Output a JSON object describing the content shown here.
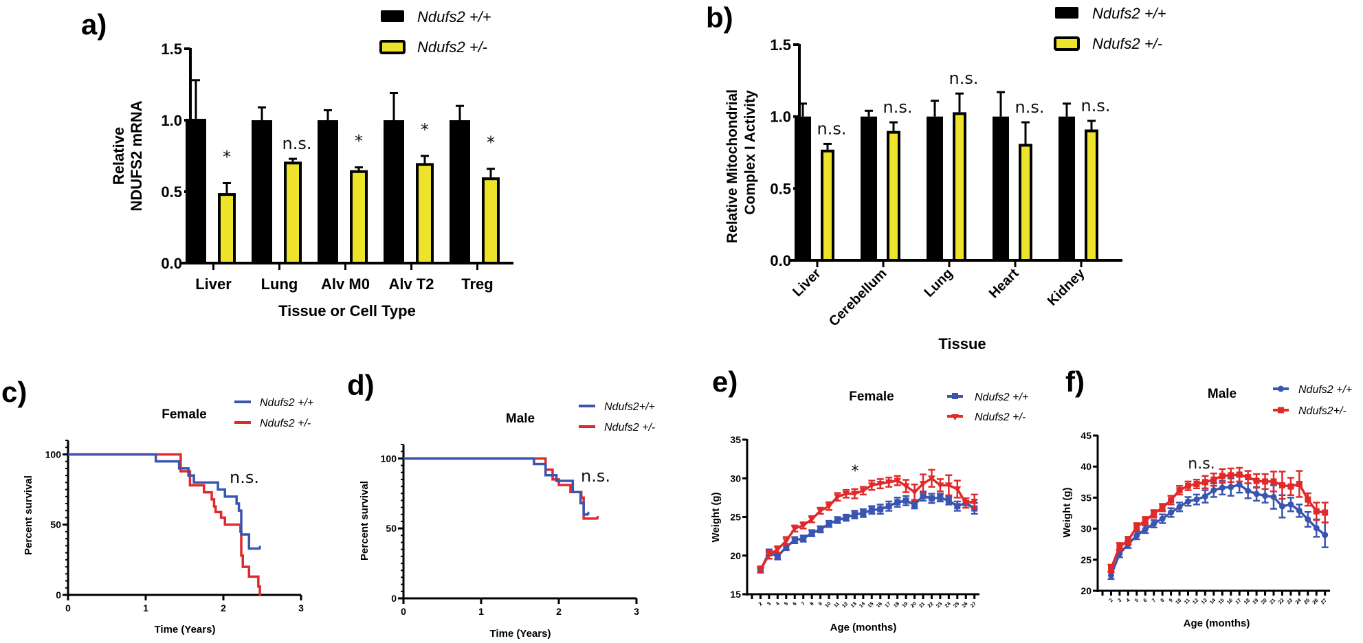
{
  "colors": {
    "wildtype_bar": "#000000",
    "het_bar": "#ede32a",
    "wildtype_line": "#3a55b0",
    "het_line": "#e02a2a"
  },
  "chart_data": [
    {
      "id": "a",
      "panel_label": "a)",
      "type": "bar",
      "title": "",
      "xlabel": "Tissue or Cell Type",
      "ylabel_lines": [
        "Relative",
        "NDUFS2 mRNA"
      ],
      "ylim": [
        0,
        1.5
      ],
      "yticks": [
        "0.0",
        "0.5",
        "1.0",
        "1.5"
      ],
      "ytick_values": [
        0,
        0.5,
        1.0,
        1.5
      ],
      "categories": [
        "Liver",
        "Lung",
        "Alv M0",
        "Alv T2",
        "Treg"
      ],
      "series": [
        {
          "name": "Ndufs2 +/+",
          "color_key": "wildtype_bar",
          "values": [
            1.01,
            1.0,
            1.0,
            1.0,
            1.0
          ],
          "error_upper": [
            1.28,
            1.09,
            1.07,
            1.19,
            1.1
          ]
        },
        {
          "name": "Ndufs2 +/-",
          "color_key": "het_bar",
          "values": [
            0.49,
            0.71,
            0.65,
            0.7,
            0.6
          ],
          "error_upper": [
            0.56,
            0.73,
            0.67,
            0.75,
            0.66
          ]
        }
      ],
      "annotations": [
        "*",
        "n.s.",
        "*",
        "*",
        "*"
      ],
      "legend": [
        "Ndufs2 +/+",
        "Ndufs2 +/-"
      ],
      "legend_position": "top-right",
      "grid": false
    },
    {
      "id": "b",
      "panel_label": "b)",
      "type": "bar",
      "title": "",
      "xlabel": "Tissue",
      "ylabel_lines": [
        "Relative  Mitochondrial",
        "Complex I Activity"
      ],
      "ylim": [
        0,
        1.5
      ],
      "yticks": [
        "0.0",
        "0.5",
        "1.0",
        "1.5"
      ],
      "ytick_values": [
        0,
        0.5,
        1.0,
        1.5
      ],
      "categories": [
        "Liver",
        "Cerebellum",
        "Lung",
        "Heart",
        "Kidney"
      ],
      "series": [
        {
          "name": "Ndufs2 +/+",
          "color_key": "wildtype_bar",
          "values": [
            1.0,
            1.0,
            1.0,
            1.0,
            1.0
          ],
          "error_upper": [
            1.09,
            1.04,
            1.11,
            1.17,
            1.09
          ]
        },
        {
          "name": "Ndufs2 +/-",
          "color_key": "het_bar",
          "values": [
            0.77,
            0.9,
            1.03,
            0.81,
            0.91
          ],
          "error_upper": [
            0.81,
            0.96,
            1.16,
            0.96,
            0.97
          ]
        }
      ],
      "annotations": [
        "n.s.",
        "n.s.",
        "n.s.",
        "n.s.",
        "n.s."
      ],
      "legend": [
        "Ndufs2 +/+",
        "Ndufs2 +/-"
      ],
      "legend_position": "top-right",
      "grid": false
    },
    {
      "id": "c",
      "panel_label": "c)",
      "type": "line",
      "subtype": "survival-step",
      "title": "Female",
      "xlabel": "Time (Years)",
      "ylabel": "Percent survival",
      "xlim": [
        0,
        3
      ],
      "ylim": [
        0,
        110
      ],
      "xticks": [
        "0",
        "1",
        "2",
        "3"
      ],
      "xtick_values": [
        0,
        1,
        2,
        3
      ],
      "yticks": [
        "0",
        "50",
        "100"
      ],
      "ytick_values": [
        0,
        50,
        100
      ],
      "series": [
        {
          "name": "Ndufs2 +/+",
          "color_key": "wildtype_line",
          "x": [
            0,
            1.13,
            1.43,
            1.55,
            1.62,
            1.93,
            2.02,
            2.17,
            2.2,
            2.23,
            2.33,
            2.47
          ],
          "y": [
            100,
            95,
            90,
            85,
            80,
            75,
            70,
            65,
            60,
            43,
            33,
            33
          ]
        },
        {
          "name": "Ndufs2 +/-",
          "color_key": "het_line",
          "x": [
            0,
            1.45,
            1.57,
            1.75,
            1.85,
            1.88,
            1.9,
            1.97,
            2.02,
            2.22,
            2.23,
            2.25,
            2.33,
            2.45,
            2.47
          ],
          "y": [
            100,
            88,
            78,
            73,
            68,
            63,
            59,
            55,
            50,
            45,
            28,
            20,
            13,
            6,
            0
          ]
        }
      ],
      "annotations": [
        "n.s."
      ],
      "legend": [
        "Ndufs2 +/+",
        "Ndufs2 +/-"
      ],
      "legend_position": "top-right",
      "grid": false
    },
    {
      "id": "d",
      "panel_label": "d)",
      "type": "line",
      "subtype": "survival-step",
      "title": "Male",
      "xlabel": "Time (Years)",
      "ylabel": "Percent survival",
      "xlim": [
        0,
        3
      ],
      "ylim": [
        0,
        110
      ],
      "xticks": [
        "0",
        "1",
        "2",
        "3"
      ],
      "xtick_values": [
        0,
        1,
        2,
        3
      ],
      "yticks": [
        "0",
        "50",
        "100"
      ],
      "ytick_values": [
        0,
        50,
        100
      ],
      "series": [
        {
          "name": "Ndufs2+/+",
          "color_key": "wildtype_line",
          "x": [
            0,
            1.68,
            1.83,
            1.97,
            2.18,
            2.28,
            2.32,
            2.38
          ],
          "y": [
            100,
            96,
            88,
            84,
            76,
            68,
            60,
            60
          ]
        },
        {
          "name": "Ndufs2 +/-",
          "color_key": "het_line",
          "x": [
            0,
            1.83,
            1.92,
            2.0,
            2.15,
            2.29,
            2.32,
            2.5
          ],
          "y": [
            100,
            92,
            85,
            81,
            76,
            72,
            57,
            57
          ]
        }
      ],
      "annotations": [
        "n.s."
      ],
      "legend": [
        "Ndufs2+/+",
        "Ndufs2 +/-"
      ],
      "legend_position": "top-right",
      "grid": false
    },
    {
      "id": "e",
      "panel_label": "e)",
      "type": "line",
      "title": "Female",
      "xlabel": "Age (months)",
      "ylabel": "Weight (g)",
      "ylim": [
        15,
        35
      ],
      "yticks": [
        "15",
        "20",
        "25",
        "30",
        "35"
      ],
      "ytick_values": [
        15,
        20,
        25,
        30,
        35
      ],
      "x": [
        2,
        3,
        4,
        5,
        6,
        7,
        8,
        9,
        10,
        11,
        12,
        13,
        14,
        15,
        16,
        17,
        18,
        19,
        20,
        21,
        22,
        23,
        24,
        25,
        26,
        27
      ],
      "series": [
        {
          "name": "Ndufs2 +/+",
          "color_key": "wildtype_line",
          "marker": "square",
          "values": [
            18.1,
            20.4,
            19.9,
            21.1,
            22.0,
            22.2,
            22.9,
            23.4,
            24.1,
            24.6,
            24.9,
            25.3,
            25.5,
            25.9,
            26.0,
            26.4,
            26.9,
            27.1,
            26.6,
            27.7,
            27.4,
            27.5,
            27.1,
            26.4,
            26.8,
            26.1
          ],
          "error": [
            0.3,
            0.4,
            0.4,
            0.4,
            0.4,
            0.4,
            0.4,
            0.4,
            0.4,
            0.4,
            0.4,
            0.5,
            0.5,
            0.5,
            0.6,
            0.6,
            0.6,
            0.6,
            0.5,
            0.6,
            0.6,
            0.5,
            0.5,
            0.6,
            0.6,
            0.7
          ]
        },
        {
          "name": "Ndufs2 +/-",
          "color_key": "het_line",
          "marker": "triangle-down",
          "values": [
            18.2,
            20.1,
            20.8,
            21.9,
            23.5,
            23.9,
            24.7,
            25.8,
            26.4,
            27.6,
            28.0,
            28.0,
            28.4,
            29.1,
            29.3,
            29.5,
            29.7,
            29.0,
            28.2,
            29.3,
            30.0,
            29.1,
            29.1,
            28.6,
            26.8,
            27.0
          ],
          "error": [
            0.4,
            0.5,
            0.4,
            0.5,
            0.4,
            0.4,
            0.4,
            0.4,
            0.5,
            0.5,
            0.5,
            0.6,
            0.5,
            0.6,
            0.6,
            0.6,
            0.6,
            0.8,
            1.0,
            1.2,
            1.1,
            0.8,
            1.3,
            1.1,
            0.6,
            0.9
          ]
        }
      ],
      "annotations": [
        "*"
      ],
      "legend": [
        "Ndufs2 +/+",
        "Ndufs2 +/-"
      ],
      "legend_position": "top-right",
      "grid": false
    },
    {
      "id": "f",
      "panel_label": "f)",
      "type": "line",
      "title": "Male",
      "xlabel": "Age (months)",
      "ylabel": "Weight (g)",
      "ylim": [
        20,
        45
      ],
      "yticks": [
        "20",
        "25",
        "30",
        "35",
        "40",
        "45"
      ],
      "ytick_values": [
        20,
        25,
        30,
        35,
        40,
        45
      ],
      "x": [
        2,
        3,
        4,
        5,
        6,
        7,
        8,
        9,
        10,
        11,
        12,
        13,
        14,
        15,
        16,
        17,
        18,
        19,
        20,
        21,
        22,
        23,
        24,
        25,
        26,
        27
      ],
      "series": [
        {
          "name": "Ndufs2 +/+",
          "color_key": "wildtype_line",
          "marker": "circle",
          "values": [
            22.5,
            26.0,
            27.5,
            28.9,
            29.9,
            30.8,
            31.6,
            32.6,
            33.5,
            34.4,
            34.7,
            35.2,
            36.2,
            36.6,
            36.7,
            37.1,
            36.1,
            35.6,
            35.3,
            35.1,
            33.6,
            33.9,
            32.9,
            31.5,
            30.1,
            29.0
          ],
          "error": [
            0.6,
            0.6,
            0.6,
            0.6,
            0.6,
            0.6,
            0.7,
            0.7,
            0.7,
            0.7,
            0.8,
            1.0,
            1.1,
            1.1,
            1.4,
            1.3,
            1.2,
            1.1,
            1.1,
            1.9,
            1.8,
            1.1,
            1.0,
            1.2,
            1.4,
            2.0
          ]
        },
        {
          "name": "Ndufs2+/-",
          "color_key": "het_line",
          "marker": "square",
          "values": [
            23.6,
            27.1,
            28.1,
            30.3,
            31.3,
            32.4,
            33.4,
            34.6,
            36.2,
            36.9,
            37.2,
            37.5,
            37.9,
            38.5,
            38.6,
            38.7,
            38.3,
            37.7,
            37.6,
            37.6,
            37.0,
            36.8,
            37.2,
            34.7,
            32.8,
            32.6
          ],
          "error": [
            0.6,
            0.6,
            0.6,
            0.6,
            0.6,
            0.6,
            0.6,
            0.7,
            0.7,
            0.7,
            0.7,
            1.0,
            1.0,
            1.1,
            1.1,
            1.1,
            1.0,
            1.1,
            1.2,
            1.6,
            2.2,
            1.4,
            2.1,
            1.0,
            1.4,
            1.6
          ]
        }
      ],
      "annotations": [
        "n.s."
      ],
      "legend": [
        "Ndufs2 +/+",
        "Ndufs2+/-"
      ],
      "legend_position": "top-right",
      "grid": false
    }
  ]
}
